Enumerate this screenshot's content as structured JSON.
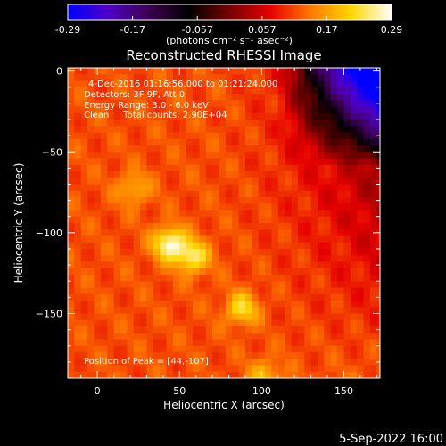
{
  "chart_data": {
    "type": "heatmap",
    "title": "Reconstructed RHESSI Image",
    "xlabel": "Heliocentric X (arcsec)",
    "ylabel": "Heliocentric Y (arcsec)",
    "xlim": [
      -18,
      172
    ],
    "ylim": [
      -190,
      2
    ],
    "x_ticks": [
      0,
      50,
      100,
      150
    ],
    "y_ticks": [
      0,
      -50,
      -100,
      -150
    ],
    "colorbar": {
      "min": -0.29,
      "max": 0.29,
      "ticks": [
        "-0.29",
        "-0.17",
        "-0.057",
        "0.057",
        "0.17",
        "0.29"
      ],
      "label": "(photons cm⁻² s⁻¹ asec⁻²)",
      "colormap": [
        "#0000ff",
        "#5000c8",
        "#3c0050",
        "#000000",
        "#780000",
        "#e60000",
        "#ff7800",
        "#ffd700",
        "#ffffff"
      ]
    },
    "annotations": [
      "4-Dec-2016 01:16:56.000 to 01:21:24.000",
      "Detectors: 3F 9F, Att 0",
      "Energy Range: 3.0 - 6.0 keV",
      "Clean     Total counts: 2.90E+04"
    ],
    "peak_label": "Position of Peak = [44,-107]",
    "peaks": [
      {
        "x": 44,
        "y": -107,
        "value": 0.29
      },
      {
        "x": 58,
        "y": -115,
        "value": 0.26
      },
      {
        "x": 88,
        "y": -147,
        "value": 0.24
      },
      {
        "x": 22,
        "y": -73,
        "value": 0.2
      },
      {
        "x": 102,
        "y": -188,
        "value": 0.2
      }
    ]
  },
  "footer_date": "5-Sep-2022 16:00"
}
